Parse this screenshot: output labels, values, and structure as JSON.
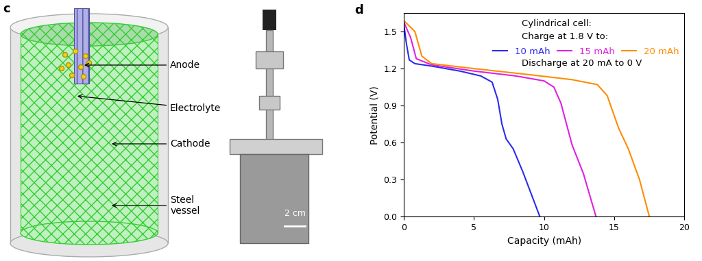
{
  "panels": {
    "c": {
      "panel_label": "c",
      "labels": [
        "Anode",
        "Electrolyte",
        "Cathode",
        "Steel\nvessel"
      ],
      "scale_bar": "2 cm"
    },
    "d": {
      "panel_label": "d"
    }
  },
  "chart_data": {
    "type": "line",
    "x_label": "Capacity (mAh)",
    "y_label": "Potential (V)",
    "xlim": [
      0,
      20
    ],
    "xticks": [
      0,
      5,
      10,
      15,
      20
    ],
    "ylim": [
      0,
      1.65
    ],
    "yticks": [
      {
        "value": 0,
        "label": "0.0"
      },
      0.3,
      0.6,
      0.9,
      1.2,
      1.5
    ],
    "annotations": [
      "Cylindrical cell:",
      "Charge at 1.8 V to:",
      "Discharge at 20 mA to 0 V"
    ],
    "legend": "upper right",
    "series": [
      {
        "name": "10 mAh",
        "color": "#2b2bf0",
        "x": [
          0,
          0.2,
          0.4,
          0.8,
          2,
          4,
          5.5,
          6.3,
          6.7,
          7.0,
          7.3,
          7.8,
          8.5,
          9.2,
          9.7
        ],
        "values": [
          1.57,
          1.4,
          1.27,
          1.24,
          1.22,
          1.18,
          1.14,
          1.09,
          0.95,
          0.75,
          0.63,
          0.55,
          0.36,
          0.15,
          0.0
        ]
      },
      {
        "name": "15 mAh",
        "color": "#e020e0",
        "x": [
          0,
          0.5,
          0.9,
          2,
          5,
          8,
          10,
          10.7,
          11.2,
          11.6,
          12.0,
          12.8,
          13.7
        ],
        "values": [
          1.58,
          1.45,
          1.28,
          1.23,
          1.18,
          1.14,
          1.1,
          1.05,
          0.92,
          0.75,
          0.58,
          0.35,
          0.0
        ]
      },
      {
        "name": "20 mAh",
        "color": "#ff8c00",
        "x": [
          0,
          0.8,
          1.3,
          2,
          5,
          9,
          12,
          13.8,
          14.5,
          14.9,
          15.3,
          16,
          16.8,
          17.5
        ],
        "values": [
          1.59,
          1.5,
          1.3,
          1.24,
          1.2,
          1.15,
          1.11,
          1.07,
          0.98,
          0.85,
          0.72,
          0.55,
          0.3,
          0.0
        ]
      }
    ]
  }
}
